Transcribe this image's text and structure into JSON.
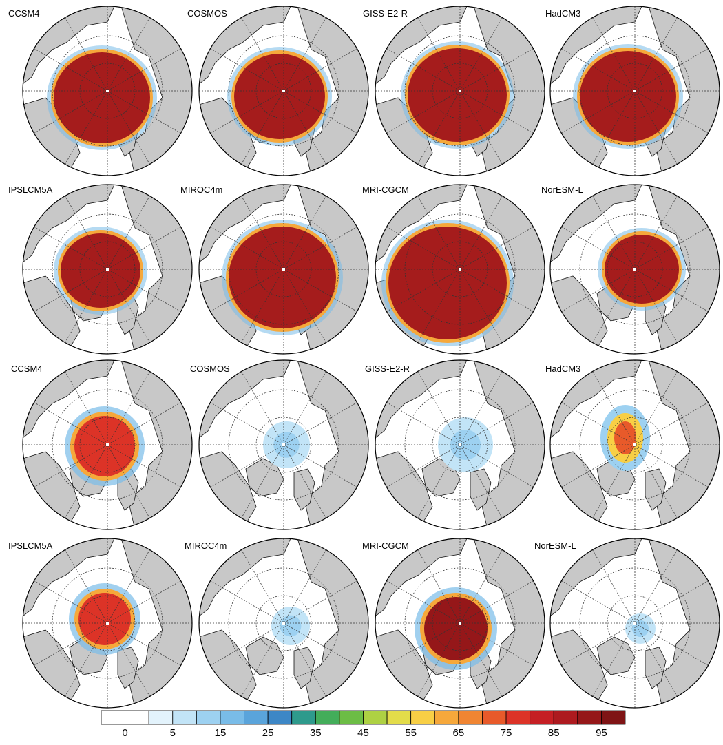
{
  "panels": [
    {
      "label": "CCSM4",
      "fields": "cascade"
    },
    {
      "label": "COSMOS"
    },
    {
      "label": "GISS-E2-R"
    },
    {
      "label": "HadCM3"
    },
    {
      "label": "IPSLCM5A"
    },
    {
      "label": "MIROC4m"
    },
    {
      "label": "MRI-CGCM"
    },
    {
      "label": "NorESM-L"
    },
    {
      "label": "CCSM4"
    },
    {
      "label": "COSMOS"
    },
    {
      "label": "GISS-E2-R"
    },
    {
      "label": "HadCM3"
    },
    {
      "label": "IPSLCM5A"
    },
    {
      "label": "MIROC4m"
    },
    {
      "label": "MRI-CGCM"
    },
    {
      "label": "NorESM-L"
    }
  ],
  "colorbar": {
    "ticks": [
      "0",
      "5",
      "15",
      "25",
      "35",
      "45",
      "55",
      "65",
      "75",
      "85",
      "95"
    ],
    "colors": [
      "#ffffff",
      "#ffffff",
      "#e3f3fc",
      "#c2e4f7",
      "#9dd1f1",
      "#79bce8",
      "#5aa4db",
      "#3d87c6",
      "#2e9a8c",
      "#43ad5a",
      "#6cbd45",
      "#aed143",
      "#e3dc4a",
      "#f8cf45",
      "#f6a83b",
      "#f08532",
      "#e85a2a",
      "#dc3327",
      "#c51f24",
      "#ad1a1f",
      "#951719",
      "#7f1415"
    ]
  },
  "map_colors": {
    "land": "#c8c8c8",
    "ocean": "#ffffff",
    "ice_core": "#a51c1c"
  }
}
